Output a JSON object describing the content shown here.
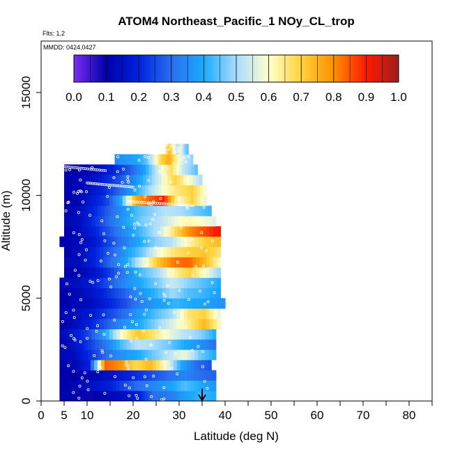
{
  "chart_data": {
    "type": "heatmap",
    "title": "ATOM4 Northeast_Pacific_1 NOy_CL_trop",
    "flights_label": "Flts: 1,2",
    "dates_label": "MMDD: 0424,0427",
    "xlabel": "Latitude (deg N)",
    "ylabel": "Altitude (m)",
    "xlim": [
      0,
      85
    ],
    "ylim": [
      0,
      17500
    ],
    "x_ticks": [
      0,
      5,
      10,
      20,
      30,
      40,
      50,
      60,
      70,
      80
    ],
    "x_minor_ticks": [
      15,
      25,
      35,
      45,
      55,
      65,
      75,
      85
    ],
    "y_ticks": [
      0,
      5000,
      10000,
      15000
    ],
    "y_tick_labels": [
      "0",
      "5000",
      "10000",
      "15000"
    ],
    "colorbar": {
      "min": 0.0,
      "max": 1.0,
      "tick_labels": [
        "0.0",
        "0.1",
        "0.2",
        "0.3",
        "0.4",
        "0.5",
        "0.6",
        "0.7",
        "0.8",
        "0.9",
        "1.0"
      ],
      "colors": [
        "#7a2ef0",
        "#0000aa",
        "#0022dd",
        "#2a6fee",
        "#1aaaff",
        "#a8dcff",
        "#ffffcc",
        "#ffd23a",
        "#ff9000",
        "#ff1a00",
        "#9b1f1f"
      ]
    },
    "arrow_latitude": 35,
    "profile_rows": [
      {
        "alt": 250,
        "lat0": 4,
        "lat1": 38,
        "vals": [
          0.12,
          0.1,
          0.09,
          0.12,
          0.14,
          0.18,
          0.3,
          0.32,
          0.38,
          0.42,
          0.4
        ]
      },
      {
        "alt": 750,
        "lat0": 4,
        "lat1": 38,
        "vals": [
          0.1,
          0.12,
          0.15,
          0.18,
          0.24,
          0.3,
          0.34,
          0.38,
          0.44,
          0.4,
          0.36
        ]
      },
      {
        "alt": 1250,
        "lat0": 4,
        "lat1": 38,
        "vals": [
          0.1,
          0.1,
          0.12,
          0.14,
          0.18,
          0.22,
          0.26,
          0.3,
          0.34,
          0.3,
          0.28
        ]
      },
      {
        "alt": 1750,
        "lat0": 4,
        "lat1": 37,
        "vals": [
          0.1,
          0.12,
          0.2,
          0.84,
          0.8,
          0.68,
          0.74,
          0.6,
          0.4,
          0.3,
          0.26
        ]
      },
      {
        "alt": 2250,
        "lat0": 4,
        "lat1": 38,
        "vals": [
          0.12,
          0.14,
          0.22,
          0.3,
          0.36,
          0.4,
          0.46,
          0.52,
          0.58,
          0.46,
          0.4
        ]
      },
      {
        "alt": 2750,
        "lat0": 4,
        "lat1": 38,
        "vals": [
          0.1,
          0.16,
          0.24,
          0.32,
          0.44,
          0.52,
          0.5,
          0.46,
          0.4,
          0.36,
          0.3
        ]
      },
      {
        "alt": 3250,
        "lat0": 4,
        "lat1": 38,
        "vals": [
          0.12,
          0.18,
          0.26,
          0.4,
          0.6,
          0.72,
          0.66,
          0.58,
          0.52,
          0.48,
          0.4
        ]
      },
      {
        "alt": 3750,
        "lat0": 4,
        "lat1": 39,
        "vals": [
          0.1,
          0.14,
          0.2,
          0.28,
          0.36,
          0.4,
          0.48,
          0.56,
          0.64,
          0.74,
          0.6
        ]
      },
      {
        "alt": 4250,
        "lat0": 4,
        "lat1": 39,
        "vals": [
          0.12,
          0.14,
          0.18,
          0.24,
          0.3,
          0.38,
          0.44,
          0.5,
          0.66,
          0.7,
          0.56
        ]
      },
      {
        "alt": 4750,
        "lat0": 4,
        "lat1": 40,
        "vals": [
          0.1,
          0.12,
          0.14,
          0.2,
          0.26,
          0.34,
          0.38,
          0.42,
          0.4,
          0.38,
          0.36
        ]
      },
      {
        "alt": 5250,
        "lat0": 4,
        "lat1": 39,
        "vals": [
          0.1,
          0.12,
          0.16,
          0.22,
          0.28,
          0.36,
          0.42,
          0.5,
          0.44,
          0.42,
          0.38
        ]
      },
      {
        "alt": 5750,
        "lat0": 4,
        "lat1": 39,
        "vals": [
          0.12,
          0.14,
          0.18,
          0.26,
          0.34,
          0.4,
          0.46,
          0.54,
          0.48,
          0.44,
          0.4
        ]
      },
      {
        "alt": 6250,
        "lat0": 5,
        "lat1": 39,
        "vals": [
          0.1,
          0.12,
          0.16,
          0.24,
          0.34,
          0.44,
          0.5,
          0.62,
          0.7,
          0.6,
          0.48
        ]
      },
      {
        "alt": 6750,
        "lat0": 5,
        "lat1": 39,
        "vals": [
          0.12,
          0.14,
          0.2,
          0.3,
          0.4,
          0.56,
          0.72,
          0.82,
          0.84,
          0.74,
          0.6
        ]
      },
      {
        "alt": 7250,
        "lat0": 5,
        "lat1": 39,
        "vals": [
          0.1,
          0.14,
          0.2,
          0.28,
          0.38,
          0.46,
          0.58,
          0.66,
          0.7,
          0.72,
          0.66
        ]
      },
      {
        "alt": 7750,
        "lat0": 4,
        "lat1": 39,
        "vals": [
          0.1,
          0.12,
          0.16,
          0.24,
          0.32,
          0.4,
          0.48,
          0.52,
          0.62,
          0.7,
          0.74
        ]
      },
      {
        "alt": 8250,
        "lat0": 5,
        "lat1": 39,
        "vals": [
          0.1,
          0.14,
          0.2,
          0.28,
          0.36,
          0.44,
          0.52,
          0.66,
          0.8,
          0.86,
          0.92
        ]
      },
      {
        "alt": 8750,
        "lat0": 5,
        "lat1": 38,
        "vals": [
          0.12,
          0.14,
          0.22,
          0.3,
          0.38,
          0.46,
          0.5,
          0.56,
          0.62,
          0.6,
          0.56
        ]
      },
      {
        "alt": 9250,
        "lat0": 5,
        "lat1": 37,
        "vals": [
          0.1,
          0.14,
          0.2,
          0.28,
          0.36,
          0.44,
          0.48,
          0.52,
          0.5,
          0.46,
          0.42
        ]
      },
      {
        "alt": 9750,
        "lat0": 5,
        "lat1": 36,
        "vals": [
          0.1,
          0.12,
          0.18,
          0.24,
          0.4,
          0.76,
          0.84,
          0.9,
          0.6,
          0.7,
          0.56
        ]
      },
      {
        "alt": 10250,
        "lat0": 5,
        "lat1": 36,
        "vals": [
          0.1,
          0.12,
          0.16,
          0.22,
          0.3,
          0.4,
          0.5,
          0.6,
          0.66,
          0.7,
          0.58
        ]
      },
      {
        "alt": 10750,
        "lat0": 5,
        "lat1": 35,
        "vals": [
          0.1,
          0.12,
          0.14,
          0.2,
          0.26,
          0.34,
          0.44,
          0.56,
          0.7,
          0.6,
          0.5
        ]
      },
      {
        "alt": 11250,
        "lat0": 5,
        "lat1": 34,
        "vals": [
          0.1,
          0.1,
          0.12,
          0.16,
          0.22,
          0.28,
          0.38,
          0.54,
          0.68,
          0.52,
          0.44
        ]
      },
      {
        "alt": 11750,
        "lat0": 16,
        "lat1": 33,
        "vals": [
          0.34,
          0.36,
          0.38,
          0.4,
          0.44,
          0.56,
          0.7,
          0.76,
          0.62,
          0.52,
          0.48
        ]
      },
      {
        "alt": 12250,
        "lat0": 27,
        "lat1": 32,
        "vals": [
          0.62,
          0.7,
          0.74,
          0.66,
          0.58,
          0.52,
          0.54,
          0.58,
          0.5,
          0.46,
          0.44
        ]
      }
    ]
  }
}
